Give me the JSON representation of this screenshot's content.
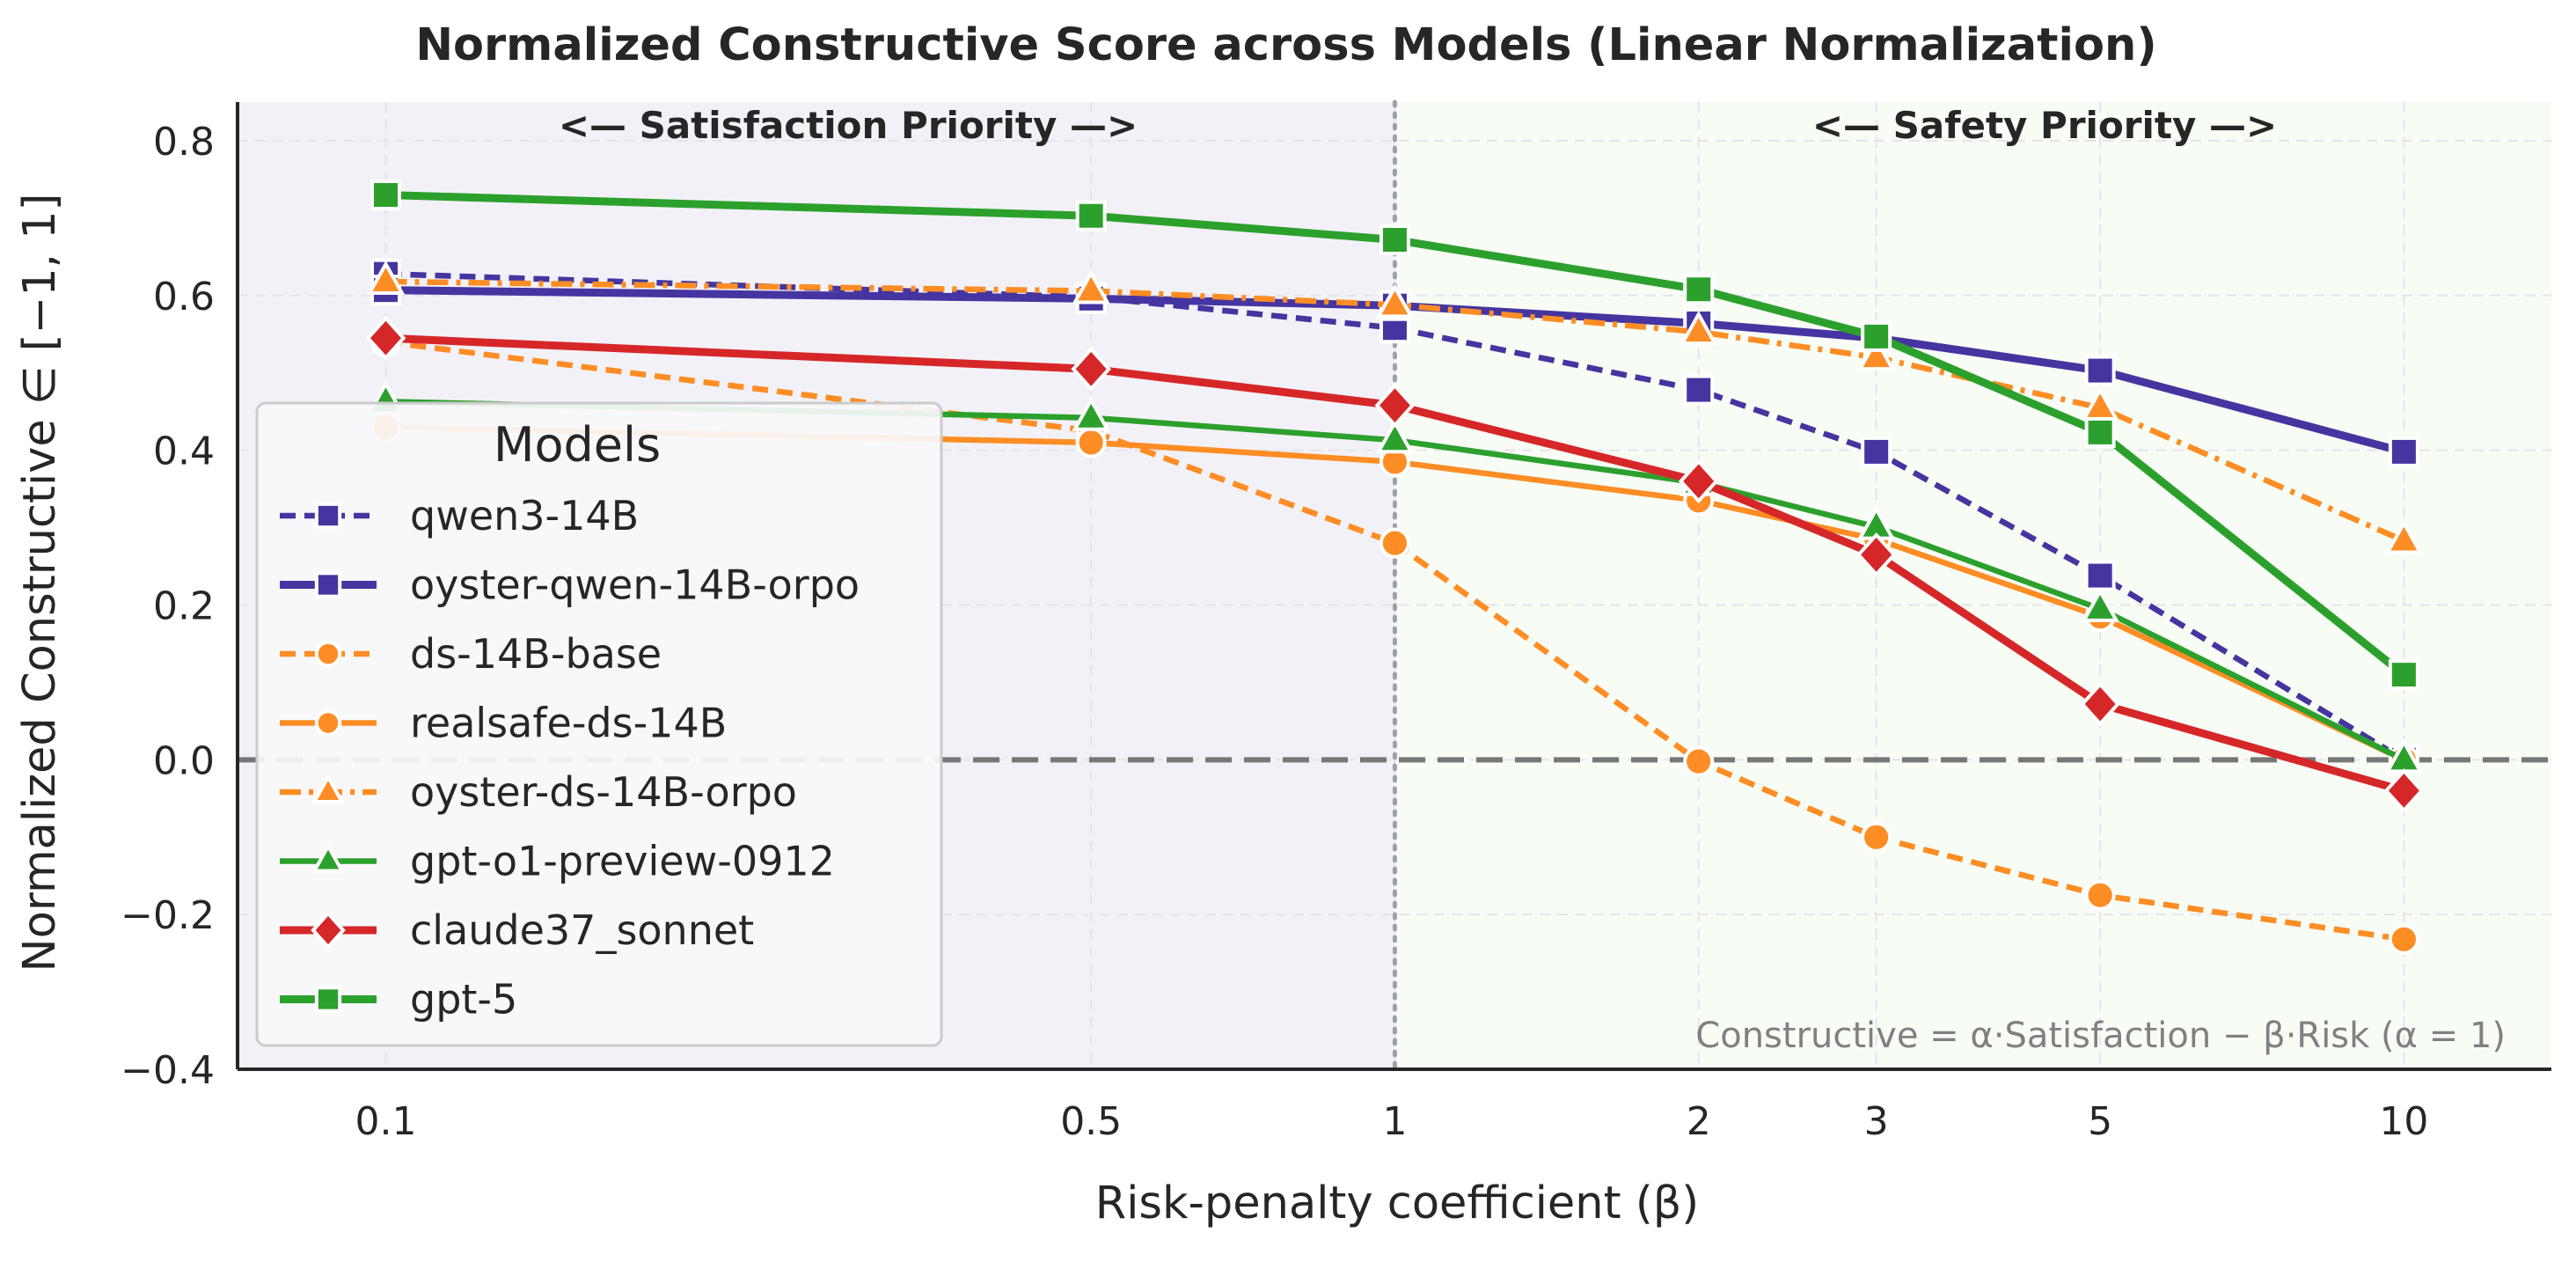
{
  "chart_data": {
    "type": "line",
    "title": "Normalized Constructive Score across Models (Linear Normalization)",
    "xlabel": "Risk-penalty coefficient (β)",
    "ylabel": "Normalized Constructive  ∈ [−1, 1]",
    "x_scale": "log",
    "x": [
      0.1,
      0.5,
      1,
      2,
      3,
      5,
      10
    ],
    "x_tick_labels": [
      "0.1",
      "0.5",
      "1",
      "2",
      "3",
      "5",
      "10"
    ],
    "ylim": [
      -0.4,
      0.85
    ],
    "y_ticks": [
      -0.4,
      -0.2,
      0.0,
      0.2,
      0.4,
      0.6,
      0.8
    ],
    "y_tick_labels": [
      "−0.4",
      "−0.2",
      "0.0",
      "0.2",
      "0.4",
      "0.6",
      "0.8"
    ],
    "grid": true,
    "legend_title": "Models",
    "legend_position": "center-left",
    "regions": [
      {
        "label": "<— Satisfaction Priority —>",
        "x_range": [
          0.0713,
          1
        ],
        "color": "#f2f1f8"
      },
      {
        "label": "<— Safety Priority —>",
        "x_range": [
          1,
          14.0
        ],
        "color": "#f7fcf5"
      }
    ],
    "annotation": "Constructive = α·Satisfaction − β·Risk (α = 1)",
    "reference_lines": {
      "y_zero": 0.0,
      "x_divider": 1
    },
    "series": [
      {
        "name": "qwen3-14B",
        "color": "#4535a0",
        "dash": "dashed",
        "marker": "square",
        "values": [
          0.628,
          0.598,
          0.558,
          0.478,
          0.398,
          0.238,
          0.0
        ]
      },
      {
        "name": "oyster-qwen-14B-orpo",
        "color": "#4535a0",
        "dash": "solid",
        "marker": "square",
        "values": [
          0.607,
          0.596,
          0.587,
          0.564,
          0.545,
          0.503,
          0.398
        ]
      },
      {
        "name": "ds-14B-base",
        "color": "#fd8d24",
        "dash": "dashed",
        "marker": "circle",
        "values": [
          0.54,
          0.425,
          0.28,
          -0.002,
          -0.1,
          -0.175,
          -0.232
        ]
      },
      {
        "name": "realsafe-ds-14B",
        "color": "#fd8d24",
        "dash": "solid",
        "marker": "circle",
        "values": [
          0.43,
          0.41,
          0.385,
          0.335,
          0.285,
          0.185,
          0.0
        ]
      },
      {
        "name": "oyster-ds-14B-orpo",
        "color": "#fd8d24",
        "dash": "dashdot",
        "marker": "triangle",
        "values": [
          0.618,
          0.606,
          0.588,
          0.553,
          0.52,
          0.455,
          0.283
        ]
      },
      {
        "name": "gpt-o1-preview-0912",
        "color": "#2ca02c",
        "dash": "solid",
        "marker": "triangle",
        "values": [
          0.463,
          0.442,
          0.413,
          0.358,
          0.301,
          0.195,
          0.0
        ]
      },
      {
        "name": "claude37_sonnet",
        "color": "#d62728",
        "dash": "solid",
        "marker": "diamond",
        "values": [
          0.545,
          0.505,
          0.458,
          0.36,
          0.265,
          0.072,
          -0.04
        ]
      },
      {
        "name": "gpt-5",
        "color": "#2ca02c",
        "dash": "solid",
        "marker": "square",
        "values": [
          0.73,
          0.703,
          0.672,
          0.608,
          0.547,
          0.423,
          0.11
        ]
      }
    ]
  }
}
